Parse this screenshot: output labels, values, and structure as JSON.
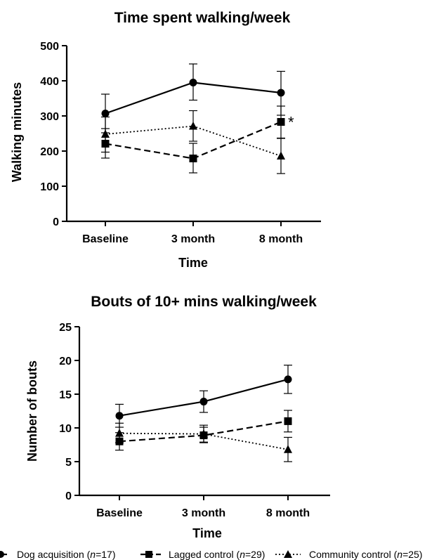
{
  "legend": [
    {
      "series": "Dog acquisition",
      "prefix": "Dog acquisition (",
      "n_italic": "n",
      "suffix": "=17)"
    },
    {
      "series": "Lagged control",
      "prefix": "Lagged control (",
      "n_italic": "n",
      "suffix": "=29)"
    },
    {
      "series": "Community control",
      "prefix": "Community control (",
      "n_italic": "n",
      "suffix": "=25)"
    }
  ],
  "series_styles": {
    "Dog acquisition": {
      "marker": "circle",
      "line": "solid",
      "color": "#000000"
    },
    "Lagged control": {
      "marker": "square",
      "line": "dashed",
      "color": "#000000"
    },
    "Community control": {
      "marker": "triangle",
      "line": "dotted",
      "color": "#000000"
    }
  },
  "chart_data": [
    {
      "type": "line",
      "title": "Time spent walking/week",
      "xlabel": "Time",
      "ylabel": "Walking minutes",
      "categories": [
        "Baseline",
        "3 month",
        "8 month"
      ],
      "ylim": [
        0,
        500
      ],
      "yticks": [
        0,
        100,
        200,
        300,
        400,
        500
      ],
      "grid": false,
      "series": [
        {
          "name": "Dog acquisition",
          "values": [
            307,
            395,
            366
          ],
          "err_low": [
            252,
            345,
            302
          ],
          "err_high": [
            362,
            448,
            427
          ]
        },
        {
          "name": "Lagged control",
          "values": [
            221,
            179,
            283
          ],
          "err_low": [
            180,
            138,
            237
          ],
          "err_high": [
            264,
            222,
            328
          ]
        },
        {
          "name": "Community control",
          "values": [
            248,
            271,
            186
          ],
          "err_low": [
            197,
            228,
            136
          ],
          "err_high": [
            297,
            315,
            236
          ]
        }
      ],
      "annotations": [
        {
          "text": "*",
          "x": "8 month",
          "y": 283
        }
      ]
    },
    {
      "type": "line",
      "title": "Bouts of 10+ mins walking/week",
      "xlabel": "Time",
      "ylabel": "Number of bouts",
      "categories": [
        "Baseline",
        "3 month",
        "8 month"
      ],
      "ylim": [
        0,
        25
      ],
      "yticks": [
        0,
        5,
        10,
        15,
        20,
        25
      ],
      "grid": false,
      "series": [
        {
          "name": "Dog acquisition",
          "values": [
            11.8,
            13.9,
            17.2
          ],
          "err_low": [
            10.1,
            12.3,
            15.1
          ],
          "err_high": [
            13.5,
            15.5,
            19.3
          ]
        },
        {
          "name": "Lagged control",
          "values": [
            8.0,
            8.9,
            11.0
          ],
          "err_low": [
            6.7,
            7.8,
            9.4
          ],
          "err_high": [
            9.3,
            10.1,
            12.6
          ]
        },
        {
          "name": "Community control",
          "values": [
            9.2,
            9.1,
            6.8
          ],
          "err_low": [
            7.8,
            7.9,
            5.0
          ],
          "err_high": [
            10.7,
            10.4,
            8.6
          ]
        }
      ],
      "annotations": []
    }
  ]
}
